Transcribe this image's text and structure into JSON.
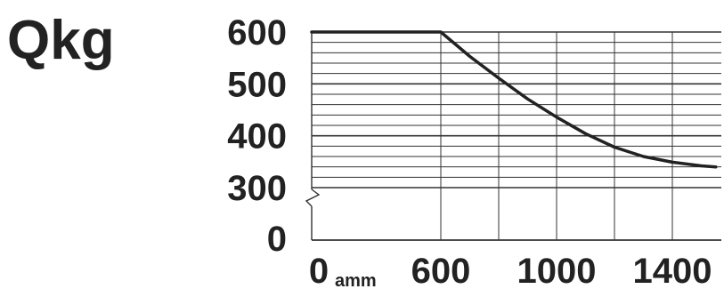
{
  "chart_data": {
    "type": "line",
    "title": "",
    "ylabel": "Qkg",
    "xlabel": "",
    "x_unit": "amm",
    "y_ticks": [
      0,
      300,
      400,
      500,
      600
    ],
    "y_tick_labels": [
      "0",
      "300",
      "400",
      "500",
      "600"
    ],
    "x_ticks": [
      0,
      600,
      1000,
      1400
    ],
    "x_tick_labels": [
      "0",
      "600",
      "1000",
      "1400"
    ],
    "x_gridlines": [
      600,
      800,
      1000,
      1200,
      1400
    ],
    "y_gridline_step": 20,
    "y_axis_break": true,
    "xlim": [
      0,
      1550
    ],
    "ylim": [
      300,
      600
    ],
    "grid": true,
    "series": [
      {
        "values": [
          {
            "x": 0,
            "y": 600
          },
          {
            "x": 600,
            "y": 600
          },
          {
            "x": 700,
            "y": 553
          },
          {
            "x": 800,
            "y": 511
          },
          {
            "x": 900,
            "y": 471
          },
          {
            "x": 1000,
            "y": 436
          },
          {
            "x": 1100,
            "y": 404
          },
          {
            "x": 1200,
            "y": 378
          },
          {
            "x": 1300,
            "y": 360
          },
          {
            "x": 1400,
            "y": 349
          },
          {
            "x": 1500,
            "y": 342
          },
          {
            "x": 1550,
            "y": 340
          }
        ],
        "color": "#222222"
      }
    ]
  }
}
